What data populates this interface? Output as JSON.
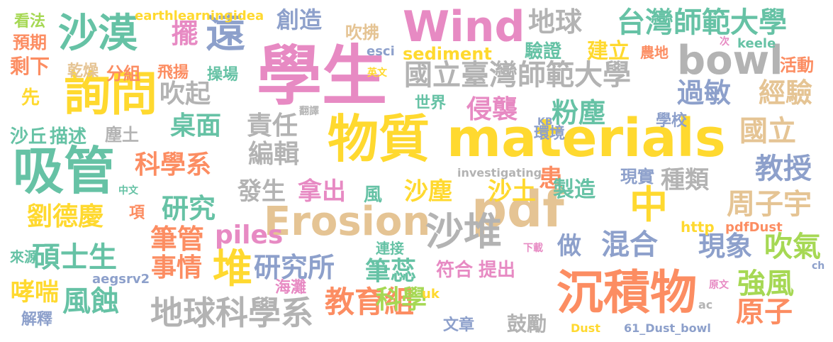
{
  "palette": {
    "pink": "#e78ac3",
    "orange": "#fc8d62",
    "green": "#a6d854",
    "teal": "#66c2a5",
    "blue": "#8da0cb",
    "yellow": "#ffd92f",
    "tan": "#e5c494",
    "gray": "#b3b3b3"
  },
  "words": [
    {
      "text": "學生",
      "color": "#e78ac3"
    },
    {
      "text": "物質",
      "color": "#ffd92f"
    },
    {
      "text": "materials",
      "color": "#ffd92f"
    },
    {
      "text": "詢問",
      "color": "#ffd92f"
    },
    {
      "text": "吸管",
      "color": "#66c2a5"
    },
    {
      "text": "沉積物",
      "color": "#fc8d62"
    },
    {
      "text": "pdf",
      "color": "#e5c494"
    },
    {
      "text": "中",
      "color": "#ffd92f"
    },
    {
      "text": "Erosion",
      "color": "#e5c494"
    },
    {
      "text": "Wind",
      "color": "#e78ac3"
    },
    {
      "text": "bowl",
      "color": "#b3b3b3"
    },
    {
      "text": "沙漠",
      "color": "#66c2a5"
    },
    {
      "text": "遠",
      "color": "#8da0cb"
    },
    {
      "text": "沙堆",
      "color": "#b3b3b3"
    },
    {
      "text": "堆",
      "color": "#ffd92f"
    },
    {
      "text": "地球科學系",
      "color": "#b3b3b3"
    },
    {
      "text": "國立臺灣師範大學",
      "color": "#b3b3b3"
    },
    {
      "text": "台灣師範大學",
      "color": "#66c2a5"
    },
    {
      "text": "科學系",
      "color": "#fc8d62"
    },
    {
      "text": "教育組",
      "color": "#fc8d62"
    },
    {
      "text": "研究所",
      "color": "#8da0cb"
    },
    {
      "text": "碩士生",
      "color": "#66c2a5"
    },
    {
      "text": "劉德慶",
      "color": "#ffd92f"
    },
    {
      "text": "周子宇",
      "color": "#e5c494"
    },
    {
      "text": "現象",
      "color": "#8da0cb"
    },
    {
      "text": "吹氣",
      "color": "#a6d854"
    },
    {
      "text": "強風",
      "color": "#a6d854"
    },
    {
      "text": "原子",
      "color": "#fc8d62"
    },
    {
      "text": "沙塵",
      "color": "#ffd92f"
    },
    {
      "text": "沙土",
      "color": "#ffd92f"
    },
    {
      "text": "患",
      "color": "#fc8d62"
    },
    {
      "text": "科學",
      "color": "#a6d854"
    },
    {
      "text": "筆蕊",
      "color": "#66c2a5"
    },
    {
      "text": "混合",
      "color": "#8da0cb"
    },
    {
      "text": "教授",
      "color": "#8da0cb"
    },
    {
      "text": "國立",
      "color": "#e5c494"
    },
    {
      "text": "經驗",
      "color": "#e5c494"
    },
    {
      "text": "過敏",
      "color": "#8da0cb"
    },
    {
      "text": "粉塵",
      "color": "#66c2a5"
    },
    {
      "text": "侵襲",
      "color": "#e78ac3"
    },
    {
      "text": "責任",
      "color": "#b3b3b3"
    },
    {
      "text": "編輯",
      "color": "#b3b3b3"
    },
    {
      "text": "吹起",
      "color": "#b3b3b3"
    },
    {
      "text": "桌面",
      "color": "#66c2a5"
    },
    {
      "text": "擺",
      "color": "#e78ac3"
    },
    {
      "text": "創造",
      "color": "#8da0cb"
    },
    {
      "text": "吹拂",
      "color": "#e5c494"
    },
    {
      "text": "地球",
      "color": "#b3b3b3"
    },
    {
      "text": "建立",
      "color": "#ffd92f"
    },
    {
      "text": "驗證",
      "color": "#66c2a5"
    },
    {
      "text": "sediment",
      "color": "#ffd92f"
    },
    {
      "text": "剩下",
      "color": "#fc8d62"
    },
    {
      "text": "預期",
      "color": "#fc8d62"
    },
    {
      "text": "看法",
      "color": "#a6d854"
    },
    {
      "text": "先",
      "color": "#ffd92f"
    },
    {
      "text": "沙丘",
      "color": "#66c2a5"
    },
    {
      "text": "描述",
      "color": "#66c2a5"
    },
    {
      "text": "塵土",
      "color": "#b3b3b3"
    },
    {
      "text": "乾燥",
      "color": "#e5c494"
    },
    {
      "text": "分組",
      "color": "#fc8d62"
    },
    {
      "text": "飛揚",
      "color": "#fc8d62"
    },
    {
      "text": "操場",
      "color": "#66c2a5"
    },
    {
      "text": "發生",
      "color": "#b3b3b3"
    },
    {
      "text": "拿出",
      "color": "#e78ac3"
    },
    {
      "text": "風",
      "color": "#66c2a5"
    },
    {
      "text": "製造",
      "color": "#66c2a5"
    },
    {
      "text": "現實",
      "color": "#8da0cb"
    },
    {
      "text": "種類",
      "color": "#b3b3b3"
    },
    {
      "text": "研究",
      "color": "#66c2a5"
    },
    {
      "text": "筆管",
      "color": "#fc8d62"
    },
    {
      "text": "piles",
      "color": "#e78ac3"
    },
    {
      "text": "事情",
      "color": "#fc8d62"
    },
    {
      "text": "做",
      "color": "#8da0cb"
    },
    {
      "text": "哮喘",
      "color": "#ffd92f"
    },
    {
      "text": "風蝕",
      "color": "#66c2a5"
    },
    {
      "text": "解釋",
      "color": "#8da0cb"
    },
    {
      "text": "來源",
      "color": "#66c2a5"
    },
    {
      "text": "項",
      "color": "#fc8d62"
    },
    {
      "text": "符合",
      "color": "#e78ac3"
    },
    {
      "text": "提出",
      "color": "#e78ac3"
    },
    {
      "text": "連接",
      "color": "#66c2a5"
    },
    {
      "text": "鼓勵",
      "color": "#b3b3b3"
    },
    {
      "text": "文章",
      "color": "#8da0cb"
    },
    {
      "text": "海灘",
      "color": "#e78ac3"
    },
    {
      "text": "世界",
      "color": "#66c2a5"
    },
    {
      "text": "環境",
      "color": "#8da0cb"
    },
    {
      "text": "學校",
      "color": "#8da0cb"
    },
    {
      "text": "活動",
      "color": "#fc8d62"
    },
    {
      "text": "農地",
      "color": "#fc8d62"
    },
    {
      "text": "翻譯",
      "color": "#b3b3b3"
    },
    {
      "text": "英文",
      "color": "#ffd92f"
    },
    {
      "text": "中文",
      "color": "#66c2a5"
    },
    {
      "text": "下載",
      "color": "#e78ac3"
    },
    {
      "text": "原文",
      "color": "#e78ac3"
    },
    {
      "text": "次",
      "color": "#e78ac3"
    },
    {
      "text": "earthlearningidea",
      "color": "#ffd92f"
    },
    {
      "text": "esci",
      "color": "#8da0cb"
    },
    {
      "text": "keele",
      "color": "#66c2a5"
    },
    {
      "text": "KB",
      "color": "#8da0cb"
    },
    {
      "text": "investigating",
      "color": "#b3b3b3"
    },
    {
      "text": "http",
      "color": "#ffd92f"
    },
    {
      "text": "pdfDust",
      "color": "#fc8d62"
    },
    {
      "text": "aegsrv2",
      "color": "#8da0cb"
    },
    {
      "text": "uk",
      "color": "#ffd92f"
    },
    {
      "text": "Dust",
      "color": "#ffd92f"
    },
    {
      "text": "61_Dust_bowl",
      "color": "#8da0cb"
    },
    {
      "text": "ac",
      "color": "#b3b3b3"
    },
    {
      "text": "ch",
      "color": "#8da0cb"
    }
  ]
}
